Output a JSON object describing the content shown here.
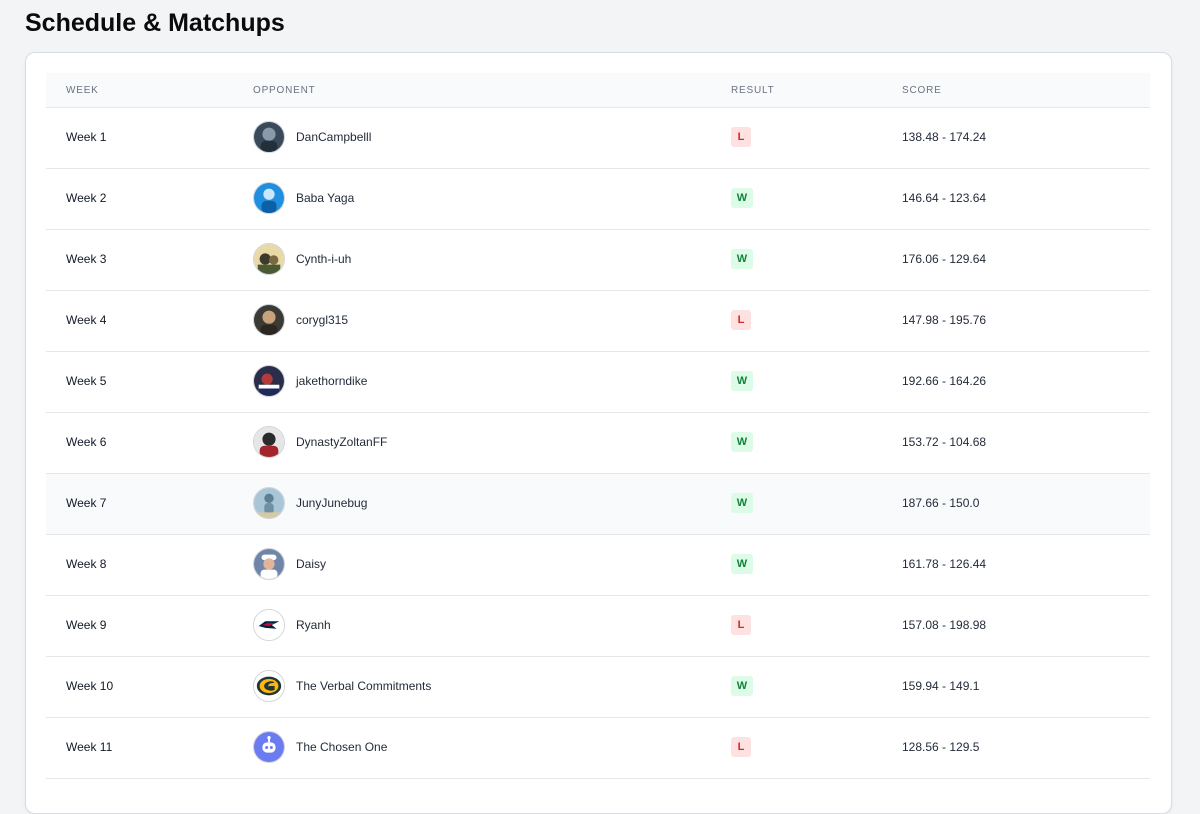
{
  "page": {
    "title": "Schedule & Matchups"
  },
  "table": {
    "headers": {
      "week": "WEEK",
      "opponent": "OPPONENT",
      "result": "RESULT",
      "score": "SCORE"
    },
    "rows": [
      {
        "week": "Week 1",
        "opponent": "DanCampbelll",
        "result": "L",
        "score": "138.48 - 174.24",
        "avatar": "photo-avatar"
      },
      {
        "week": "Week 2",
        "opponent": "Baba Yaga",
        "result": "W",
        "score": "146.64 - 123.64",
        "avatar": "photo-avatar"
      },
      {
        "week": "Week 3",
        "opponent": "Cynth-i-uh",
        "result": "W",
        "score": "176.06 - 129.64",
        "avatar": "photo-avatar"
      },
      {
        "week": "Week 4",
        "opponent": "corygl315",
        "result": "L",
        "score": "147.98 - 195.76",
        "avatar": "photo-avatar"
      },
      {
        "week": "Week 5",
        "opponent": "jakethorndike",
        "result": "W",
        "score": "192.66 - 164.26",
        "avatar": "photo-avatar"
      },
      {
        "week": "Week 6",
        "opponent": "DynastyZoltanFF",
        "result": "W",
        "score": "153.72 - 104.68",
        "avatar": "photo-avatar"
      },
      {
        "week": "Week 7",
        "opponent": "JunyJunebug",
        "result": "W",
        "score": "187.66 - 150.0",
        "avatar": "photo-avatar"
      },
      {
        "week": "Week 8",
        "opponent": "Daisy",
        "result": "W",
        "score": "161.78 - 126.44",
        "avatar": "photo-avatar"
      },
      {
        "week": "Week 9",
        "opponent": "Ryanh",
        "result": "L",
        "score": "157.08 - 198.98",
        "avatar": "patriots-logo"
      },
      {
        "week": "Week 10",
        "opponent": "The Verbal Commitments",
        "result": "W",
        "score": "159.94 - 149.1",
        "avatar": "packers-logo"
      },
      {
        "week": "Week 11",
        "opponent": "The Chosen One",
        "result": "L",
        "score": "128.56 - 129.5",
        "avatar": "robot-avatar"
      }
    ]
  },
  "colors": {
    "win_bg": "#dcfce7",
    "win_text": "#15803d",
    "loss_bg": "#fee2e2",
    "loss_text": "#dc2626"
  }
}
